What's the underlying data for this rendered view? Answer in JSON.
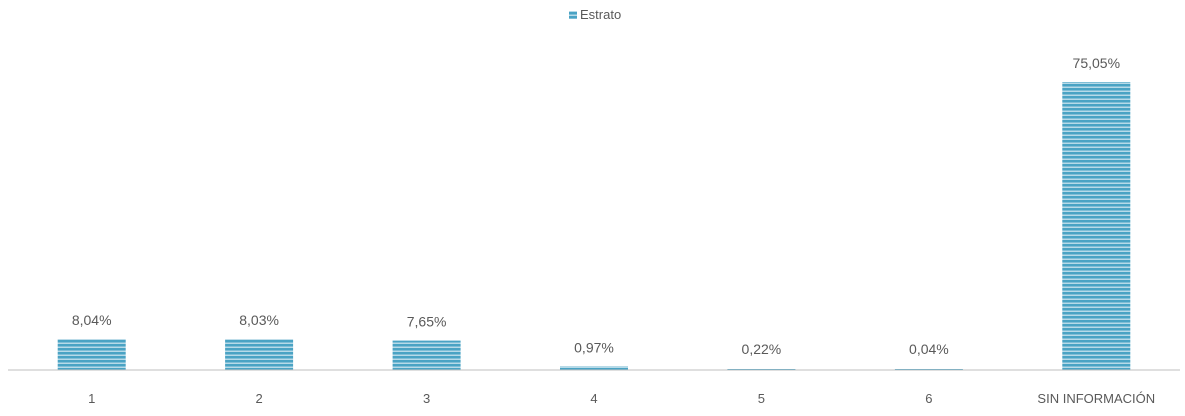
{
  "chart_data": {
    "type": "bar",
    "categories": [
      "1",
      "2",
      "3",
      "4",
      "5",
      "6",
      "SIN INFORMACIÓN"
    ],
    "series": [
      {
        "name": "Estrato",
        "values": [
          8.04,
          8.03,
          7.65,
          0.97,
          0.22,
          0.04,
          75.05
        ],
        "labels": [
          "8,04%",
          "8,03%",
          "7,65%",
          "0,97%",
          "0,22%",
          "0,04%",
          "75,05%"
        ],
        "color": "#4aa3c4"
      }
    ],
    "ylim": [
      0,
      80
    ],
    "grid": false,
    "legend_position": "top-center",
    "bar_pattern": "horizontal-stripes",
    "colors": {
      "bar_fill": "#4aa3c4",
      "bar_stripe": "#ffffff",
      "axis": "#bfbfbf",
      "text": "#595959"
    }
  }
}
